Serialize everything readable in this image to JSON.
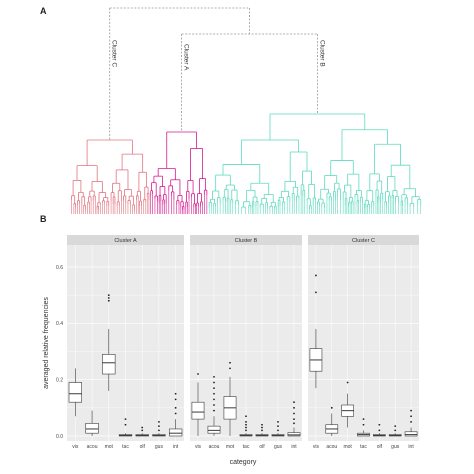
{
  "panel_labels": {
    "a": "A",
    "b": "B"
  },
  "colors": {
    "cluster_a": "#d6198f",
    "cluster_b": "#5fd9bd",
    "cluster_c": "#e07480",
    "panel_bg": "#ebebeb",
    "strip_bg": "#d9d9d9",
    "grid": "#ffffff",
    "box": "#3a3a3a",
    "root_dashed": "#999999"
  },
  "chart_data": [
    {
      "type": "dendrogram",
      "panel": "A",
      "clusters": [
        {
          "name": "Cluster C",
          "color": "#e07480",
          "label": "Cluster C"
        },
        {
          "name": "Cluster A",
          "color": "#d6198f",
          "label": "Cluster A"
        },
        {
          "name": "Cluster B",
          "color": "#5fd9bd",
          "label": "Cluster B"
        }
      ]
    },
    {
      "type": "boxplot",
      "panel": "B",
      "xlabel": "category",
      "ylabel": "averaged relative frequencies",
      "ylim": [
        0,
        0.6
      ],
      "yticks": [
        "0.0",
        "0.2",
        "0.4",
        "0.6"
      ],
      "categories": [
        "vis",
        "acou",
        "mot",
        "tac",
        "olf",
        "gus",
        "int"
      ],
      "facets": [
        {
          "name": "Cluster A",
          "boxes": [
            {
              "min": 0.07,
              "q1": 0.12,
              "median": 0.15,
              "q3": 0.19,
              "max": 0.24,
              "outliers": []
            },
            {
              "min": 0.0,
              "q1": 0.01,
              "median": 0.025,
              "q3": 0.045,
              "max": 0.09,
              "outliers": []
            },
            {
              "min": 0.16,
              "q1": 0.22,
              "median": 0.26,
              "q3": 0.29,
              "max": 0.38,
              "outliers": [
                0.48,
                0.49,
                0.5
              ]
            },
            {
              "min": 0.0,
              "q1": 0.0,
              "median": 0.002,
              "q3": 0.005,
              "max": 0.01,
              "outliers": [
                0.04,
                0.06
              ]
            },
            {
              "min": 0.0,
              "q1": 0.0,
              "median": 0.002,
              "q3": 0.005,
              "max": 0.01,
              "outliers": [
                0.02,
                0.03
              ]
            },
            {
              "min": 0.0,
              "q1": 0.0,
              "median": 0.002,
              "q3": 0.005,
              "max": 0.01,
              "outliers": [
                0.02,
                0.035,
                0.05
              ]
            },
            {
              "min": 0.0,
              "q1": 0.0,
              "median": 0.01,
              "q3": 0.025,
              "max": 0.06,
              "outliers": [
                0.08,
                0.1,
                0.13,
                0.15
              ]
            }
          ]
        },
        {
          "name": "Cluster B",
          "boxes": [
            {
              "min": 0.0,
              "q1": 0.06,
              "median": 0.085,
              "q3": 0.12,
              "max": 0.19,
              "outliers": [
                0.22
              ]
            },
            {
              "min": 0.0,
              "q1": 0.01,
              "median": 0.02,
              "q3": 0.035,
              "max": 0.07,
              "outliers": [
                0.09,
                0.11,
                0.13,
                0.15,
                0.17,
                0.19,
                0.21
              ]
            },
            {
              "min": 0.0,
              "q1": 0.06,
              "median": 0.1,
              "q3": 0.14,
              "max": 0.21,
              "outliers": [
                0.24,
                0.26
              ]
            },
            {
              "min": 0.0,
              "q1": 0.0,
              "median": 0.002,
              "q3": 0.005,
              "max": 0.01,
              "outliers": [
                0.02,
                0.03,
                0.04,
                0.05,
                0.07
              ]
            },
            {
              "min": 0.0,
              "q1": 0.0,
              "median": 0.002,
              "q3": 0.005,
              "max": 0.01,
              "outliers": [
                0.02,
                0.03,
                0.04
              ]
            },
            {
              "min": 0.0,
              "q1": 0.0,
              "median": 0.002,
              "q3": 0.005,
              "max": 0.01,
              "outliers": [
                0.02,
                0.035,
                0.05
              ]
            },
            {
              "min": 0.0,
              "q1": 0.0,
              "median": 0.004,
              "q3": 0.012,
              "max": 0.03,
              "outliers": [
                0.045,
                0.06,
                0.08,
                0.1,
                0.12
              ]
            }
          ]
        },
        {
          "name": "Cluster C",
          "boxes": [
            {
              "min": 0.17,
              "q1": 0.23,
              "median": 0.27,
              "q3": 0.31,
              "max": 0.38,
              "outliers": [
                0.51,
                0.57
              ]
            },
            {
              "min": 0.0,
              "q1": 0.01,
              "median": 0.025,
              "q3": 0.04,
              "max": 0.08,
              "outliers": [
                0.1
              ]
            },
            {
              "min": 0.03,
              "q1": 0.07,
              "median": 0.09,
              "q3": 0.11,
              "max": 0.15,
              "outliers": [
                0.19
              ]
            },
            {
              "min": 0.0,
              "q1": 0.0,
              "median": 0.005,
              "q3": 0.01,
              "max": 0.02,
              "outliers": [
                0.04,
                0.06
              ]
            },
            {
              "min": 0.0,
              "q1": 0.0,
              "median": 0.002,
              "q3": 0.005,
              "max": 0.01,
              "outliers": [
                0.02,
                0.04
              ]
            },
            {
              "min": 0.0,
              "q1": 0.0,
              "median": 0.002,
              "q3": 0.005,
              "max": 0.01,
              "outliers": [
                0.02,
                0.035
              ]
            },
            {
              "min": 0.0,
              "q1": 0.0,
              "median": 0.005,
              "q3": 0.015,
              "max": 0.03,
              "outliers": [
                0.05,
                0.07,
                0.09
              ]
            }
          ]
        }
      ]
    }
  ]
}
